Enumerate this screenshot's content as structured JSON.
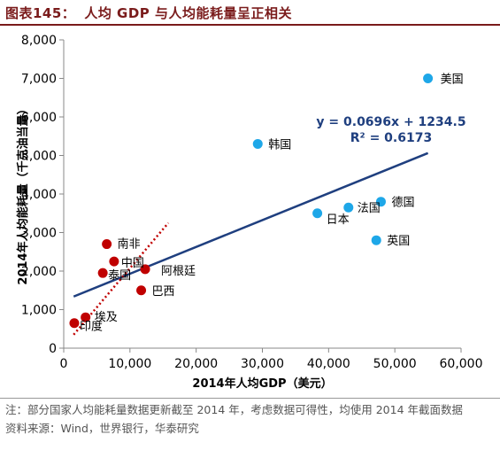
{
  "header": {
    "figure_label": "图表145：",
    "title": "人均 GDP 与人均能耗量呈正相关"
  },
  "footer": {
    "note": "注：部分国家人均能耗量数据更新截至 2014 年，考虑数据可得性，均使用 2014 年截面数据",
    "source": "资料来源：Wind，世界银行，华泰研究"
  },
  "colors": {
    "title": "#7a1b1b",
    "developed_points": "#1ea7e8",
    "developing_points": "#c00000",
    "fit_line": "#1f3f7f",
    "developing_trend": "#c00000"
  },
  "chart_data": {
    "type": "scatter",
    "xlabel": "2014年人均GDP（美元）",
    "ylabel": "2014年人均能耗量（千克油当量）",
    "xlim": [
      0,
      60000
    ],
    "ylim": [
      0,
      8000
    ],
    "xticks": [
      "0",
      "10,000",
      "20,000",
      "30,000",
      "40,000",
      "50,000",
      "60,000"
    ],
    "yticks": [
      "0",
      "1,000",
      "2,000",
      "3,000",
      "4,000",
      "5,000",
      "6,000",
      "7,000",
      "8,000"
    ],
    "grid": false,
    "series": [
      {
        "color": "#1ea7e8",
        "points": [
          {
            "label": "美国",
            "x": 55000,
            "y": 7000
          },
          {
            "label": "韩国",
            "x": 29300,
            "y": 5300
          },
          {
            "label": "德国",
            "x": 47900,
            "y": 3800
          },
          {
            "label": "法国",
            "x": 43000,
            "y": 3650
          },
          {
            "label": "日本",
            "x": 38300,
            "y": 3500
          },
          {
            "label": "英国",
            "x": 47200,
            "y": 2800
          }
        ]
      },
      {
        "color": "#c00000",
        "points": [
          {
            "label": "南非",
            "x": 6500,
            "y": 2700
          },
          {
            "label": "中国",
            "x": 7600,
            "y": 2250
          },
          {
            "label": "阿根廷",
            "x": 12300,
            "y": 2050
          },
          {
            "label": "泰国",
            "x": 5900,
            "y": 1950
          },
          {
            "label": "巴西",
            "x": 11700,
            "y": 1500
          },
          {
            "label": "埃及",
            "x": 3300,
            "y": 800
          },
          {
            "label": "印度",
            "x": 1600,
            "y": 650
          }
        ]
      }
    ],
    "fit_line": {
      "equation": "y = 0.0696x + 1234.5",
      "r_squared": "R² = 0.6173",
      "slope": 0.0696,
      "intercept": 1234.5,
      "x_range": [
        1500,
        55000
      ]
    },
    "developing_trend": {
      "style": "dotted",
      "x_range": [
        1500,
        15800
      ],
      "y_range": [
        350,
        3250
      ]
    }
  }
}
